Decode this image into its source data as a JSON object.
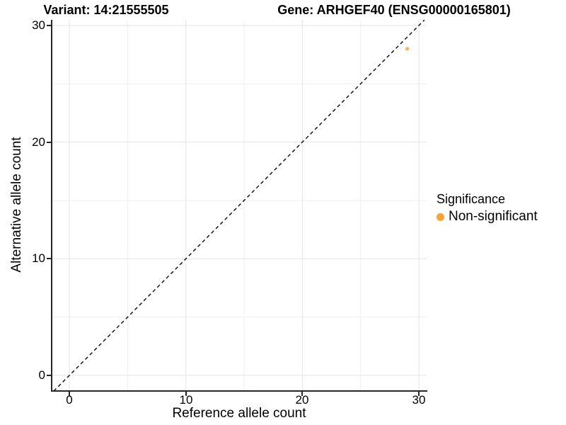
{
  "titles": {
    "left": "Variant: 14:21555505",
    "right": "Gene: ARHGEF40 (ENSG00000165801)"
  },
  "axes": {
    "x": {
      "label": "Reference allele count",
      "ticks": [
        "0",
        "10",
        "20",
        "30"
      ]
    },
    "y": {
      "label": "Alternative allele count",
      "ticks": [
        "0",
        "10",
        "20",
        "30"
      ]
    }
  },
  "legend": {
    "title": "Significance",
    "items": [
      {
        "label": "Non-significant",
        "color": "#FBA233"
      }
    ]
  },
  "chart_data": {
    "type": "scatter",
    "title": "Variant: 14:21555505 — Gene: ARHGEF40 (ENSG00000165801)",
    "xlabel": "Reference allele count",
    "ylabel": "Alternative allele count",
    "series": [
      {
        "name": "Non-significant",
        "color": "#FBA233",
        "points": [
          {
            "x": 29,
            "y": 28
          }
        ]
      }
    ],
    "reference_line": {
      "type": "identity",
      "equation": "y = x",
      "style": "dashed",
      "color": "#000000"
    },
    "xlim": [
      -1.52,
      30.66
    ],
    "ylim": [
      -1.34,
      30.48
    ],
    "x_breaks": [
      0,
      10,
      20,
      30
    ],
    "y_breaks": [
      0,
      10,
      20,
      30
    ],
    "x_minor_breaks": [
      5,
      15,
      25
    ],
    "y_minor_breaks": [
      5,
      15,
      25
    ],
    "grid": true,
    "legend_position": "right"
  },
  "colors": {
    "background": "#FFFFFF",
    "grid_major": "#E3E3E3",
    "grid_minor": "#EFEFEF",
    "axis_line": "#262626",
    "text": "#000000"
  }
}
